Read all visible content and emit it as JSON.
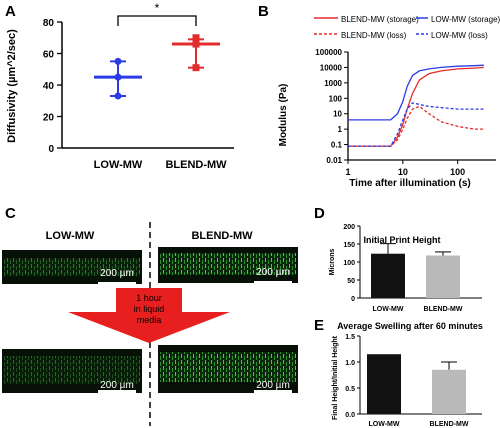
{
  "panel_labels": {
    "a": "A",
    "b": "B",
    "c": "C",
    "d": "D",
    "e": "E"
  },
  "chart_data": [
    {
      "id": "A",
      "type": "scatter",
      "categories": [
        "LOW-MW",
        "BLEND-MW"
      ],
      "ylabel": "Diffusivity (µm^2/sec)",
      "ylim": [
        0,
        80
      ],
      "yticks": [
        0,
        20,
        40,
        60,
        80
      ],
      "series": [
        {
          "category": "LOW-MW",
          "color": "#2b3ce6",
          "points": [
            55,
            45,
            33
          ],
          "mean": 45,
          "sd_low": 33,
          "sd_high": 55
        },
        {
          "category": "BLEND-MW",
          "color": "#e32b2b",
          "points": [
            70,
            66,
            51
          ],
          "mean": 66,
          "sd_low": 51,
          "sd_high": 69
        }
      ],
      "significance": "*"
    },
    {
      "id": "B",
      "type": "line",
      "xlabel": "Time after illumination (s)",
      "ylabel": "Modulus (Pa)",
      "xscale": "log",
      "yscale": "log",
      "xlim": [
        1,
        500
      ],
      "ylim": [
        0.01,
        100000
      ],
      "xticks": [
        "1",
        "10",
        "100"
      ],
      "yticks": [
        "0.01",
        "0.1",
        "1",
        "10",
        "100",
        "1000",
        "10000",
        "100000"
      ],
      "series": [
        {
          "name": "BLEND-MW (storage)",
          "color": "#e32b2b",
          "dash": "solid",
          "x": [
            1,
            6,
            8,
            10,
            12,
            15,
            20,
            30,
            50,
            100,
            200,
            300
          ],
          "y": [
            0.08,
            0.08,
            0.3,
            2,
            20,
            200,
            1500,
            4000,
            6000,
            8000,
            9000,
            10000
          ]
        },
        {
          "name": "LOW-MW (storage)",
          "color": "#2b3ce6",
          "dash": "solid",
          "x": [
            1,
            6,
            8,
            10,
            12,
            15,
            20,
            30,
            50,
            100,
            200,
            300
          ],
          "y": [
            4,
            4,
            10,
            60,
            600,
            3000,
            6000,
            8000,
            10000,
            12000,
            13000,
            14000
          ]
        },
        {
          "name": "BLEND-MW (loss)",
          "color": "#e32b2b",
          "dash": "dashed",
          "x": [
            1,
            6,
            8,
            10,
            12,
            15,
            20,
            30,
            50,
            100,
            200,
            300
          ],
          "y": [
            0.08,
            0.08,
            0.2,
            1,
            5,
            20,
            30,
            10,
            3,
            1.5,
            1,
            1
          ]
        },
        {
          "name": "LOW-MW (loss)",
          "color": "#2b3ce6",
          "dash": "dashed",
          "x": [
            1,
            6,
            8,
            10,
            12,
            15,
            20,
            30,
            50,
            100,
            200,
            300
          ],
          "y": [
            0.08,
            0.08,
            0.5,
            4,
            20,
            50,
            40,
            30,
            25,
            20,
            20,
            20
          ]
        }
      ]
    },
    {
      "id": "D",
      "type": "bar",
      "title": "Initial Print Height",
      "ylabel": "Microns",
      "categories": [
        "LOW-MW",
        "BLEND-MW"
      ],
      "values": [
        123,
        118
      ],
      "errors": [
        28,
        10
      ],
      "colors": [
        "#111111",
        "#b9b9b9"
      ],
      "ylim": [
        0,
        200
      ],
      "yticks": [
        0,
        50,
        100,
        150,
        200
      ]
    },
    {
      "id": "E",
      "type": "bar",
      "title": "Average Swelling after 60 minutes",
      "ylabel": "Final Height/Initial Height",
      "categories": [
        "LOW-MW",
        "BLEND-MW"
      ],
      "values": [
        1.15,
        0.85
      ],
      "errors": [
        0,
        0.15
      ],
      "colors": [
        "#111111",
        "#b9b9b9"
      ],
      "ylim": [
        0,
        1.5
      ],
      "yticks": [
        "0.0",
        "0.5",
        "1.0",
        "1.5"
      ]
    }
  ],
  "panel_c": {
    "left_label": "LOW-MW",
    "right_label": "BLEND-MW",
    "scale_bar": "200 µm",
    "arrow_text": [
      "1 hour",
      "in liquid",
      "media"
    ]
  }
}
